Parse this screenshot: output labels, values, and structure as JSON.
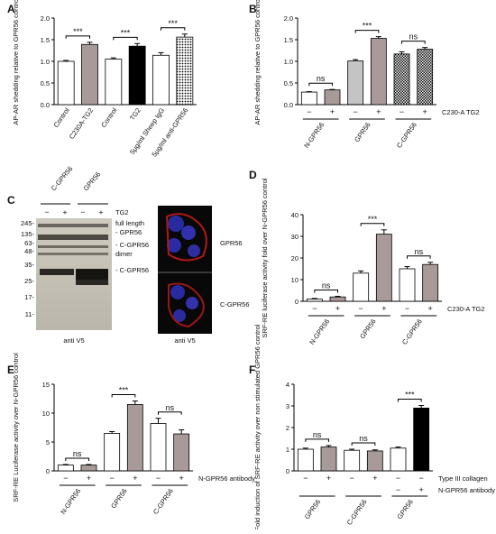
{
  "panels": {
    "A": "A",
    "B": "B",
    "C": "C",
    "D": "D",
    "E": "E",
    "F": "F"
  },
  "chart_data": [
    {
      "panel": "A",
      "type": "bar",
      "ylabel": "AP-AR shedding relative to GPR56 control",
      "ylim": [
        0,
        2.0
      ],
      "yticks": [
        "0.0",
        "0.5",
        "1.0",
        "1.5",
        "2.0"
      ],
      "categories": [
        "Control",
        "C230A-TG2",
        "Control",
        "TG2",
        "5µg/ml Sheep IgG",
        "5µg/ml anti-GPR56"
      ],
      "values": [
        1.0,
        1.39,
        1.05,
        1.35,
        1.14,
        1.56
      ],
      "errors": [
        0.02,
        0.05,
        0.03,
        0.06,
        0.06,
        0.07
      ],
      "fills": [
        "white",
        "gray",
        "white",
        "black",
        "white",
        "dots"
      ],
      "significance": [
        {
          "from": 0,
          "to": 1,
          "label": "***"
        },
        {
          "from": 2,
          "to": 3,
          "label": "***"
        },
        {
          "from": 4,
          "to": 5,
          "label": "***"
        }
      ]
    },
    {
      "panel": "B",
      "type": "bar",
      "ylabel": "AP-AR shedding relative to GPR56 control",
      "ylim": [
        0,
        2.0
      ],
      "yticks": [
        "0.0",
        "0.5",
        "1.0",
        "1.5",
        "2.0"
      ],
      "values": [
        0.29,
        0.34,
        1.01,
        1.53,
        1.17,
        1.28
      ],
      "errors": [
        0.01,
        0.01,
        0.03,
        0.04,
        0.05,
        0.04
      ],
      "fills": [
        "white",
        "gray",
        "hlines",
        "gray",
        "check",
        "check"
      ],
      "signs": [
        "−",
        "+",
        "−",
        "+",
        "−",
        "+"
      ],
      "treatment_label": "C230-A TG2",
      "groups": [
        "N-GPR56",
        "GPR56",
        "C-GPR56"
      ],
      "significance": [
        {
          "from": 0,
          "to": 1,
          "label": "ns"
        },
        {
          "from": 2,
          "to": 3,
          "label": "***"
        },
        {
          "from": 4,
          "to": 5,
          "label": "ns"
        }
      ]
    },
    {
      "panel": "D",
      "type": "bar",
      "ylabel": "SRF-RE luciferase activity fold over N-GPR56 control",
      "ylim": [
        0,
        40
      ],
      "yticks": [
        "0",
        "10",
        "20",
        "30",
        "40"
      ],
      "values": [
        1.0,
        2.0,
        13.0,
        31.0,
        15.0,
        17.0
      ],
      "errors": [
        0.3,
        0.3,
        1.0,
        2.0,
        1.0,
        1.0
      ],
      "fills": [
        "white",
        "gray",
        "white",
        "gray",
        "white",
        "gray"
      ],
      "signs": [
        "−",
        "+",
        "−",
        "+",
        "−",
        "+"
      ],
      "treatment_label": "C230-A TG2",
      "groups": [
        "N-GPR56",
        "GPR56",
        "C-GPR56"
      ],
      "significance": [
        {
          "from": 0,
          "to": 1,
          "label": "ns"
        },
        {
          "from": 2,
          "to": 3,
          "label": "***"
        },
        {
          "from": 4,
          "to": 5,
          "label": "ns"
        }
      ]
    },
    {
      "panel": "E",
      "type": "bar",
      "ylabel": "SRF-RE Luciferase activity over N-GPR56 control",
      "ylim": [
        0,
        15
      ],
      "yticks": [
        "0",
        "5",
        "10",
        "15"
      ],
      "values": [
        1.0,
        1.0,
        6.5,
        11.5,
        8.2,
        6.4
      ],
      "errors": [
        0.1,
        0.1,
        0.3,
        0.6,
        0.9,
        0.7
      ],
      "fills": [
        "white",
        "gray",
        "white",
        "gray",
        "white",
        "gray"
      ],
      "signs": [
        "−",
        "+",
        "−",
        "+",
        "−",
        "+"
      ],
      "treatment_label": "N-GPR56 antibody",
      "groups": [
        "N-GPR56",
        "GPR56",
        "C-GPR56"
      ],
      "significance": [
        {
          "from": 0,
          "to": 1,
          "label": "ns"
        },
        {
          "from": 2,
          "to": 3,
          "label": "***"
        },
        {
          "from": 4,
          "to": 5,
          "label": "ns"
        }
      ]
    },
    {
      "panel": "F",
      "type": "bar",
      "ylabel": "Fold induction of SRF-RE activity over non stimulated GPR56 control",
      "ylim": [
        0,
        4
      ],
      "yticks": [
        "0",
        "1",
        "2",
        "3",
        "4"
      ],
      "values": [
        1.0,
        1.1,
        0.95,
        0.92,
        1.05,
        2.9
      ],
      "errors": [
        0.05,
        0.07,
        0.05,
        0.05,
        0.05,
        0.12
      ],
      "fills": [
        "white",
        "gray",
        "white",
        "gray",
        "white",
        "black"
      ],
      "signs": [
        "−",
        "+",
        "−",
        "+",
        "−",
        "−"
      ],
      "signs2": [
        "",
        "",
        "",
        "",
        "−",
        "+"
      ],
      "treatment_label": "Type III collagen",
      "treatment_label2": "N-GPR56 antibody",
      "groups": [
        "GPR56",
        "C-GPR56",
        "GPR56"
      ],
      "significance": [
        {
          "from": 0,
          "to": 1,
          "label": "ns"
        },
        {
          "from": 2,
          "to": 3,
          "label": "ns"
        },
        {
          "from": 4,
          "to": 5,
          "label": "***"
        }
      ]
    }
  ],
  "panel_c": {
    "lane_headers": [
      "C-GPR56",
      "GPR56"
    ],
    "tg2_label": "TG2",
    "tg2_signs": [
      "−",
      "+",
      "−",
      "+"
    ],
    "mw_markers": [
      "245-",
      "135-",
      "63-",
      "48-",
      "35-",
      "25-",
      "17-",
      "11-"
    ],
    "band_labels": [
      "full length",
      "- GPR56",
      "- C-GPR56",
      "dimer",
      "- C-GPR56"
    ],
    "blot_caption": "anti V5",
    "micro_caption": "anti V5",
    "micro_labels": [
      "GPR56",
      "C-GPR56"
    ]
  }
}
